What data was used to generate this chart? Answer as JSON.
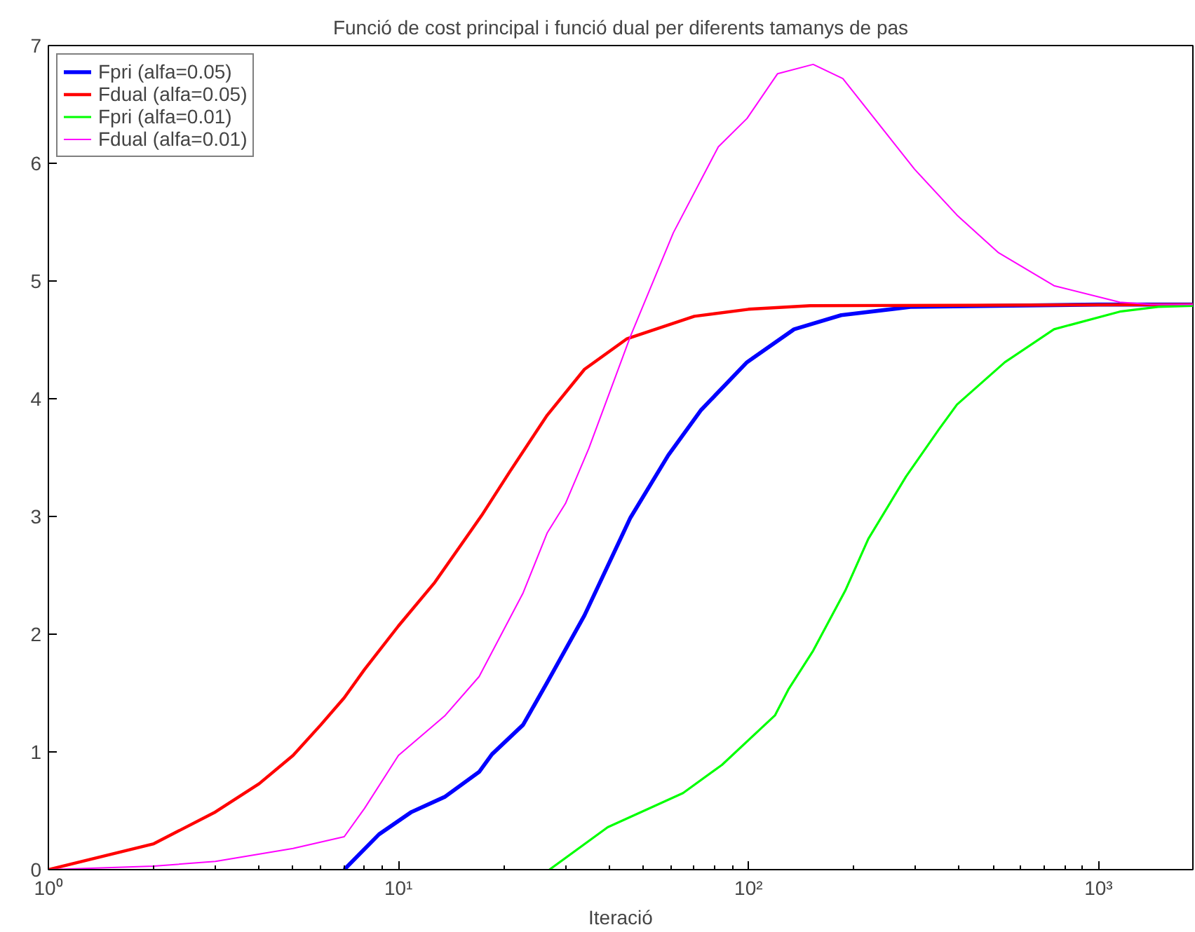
{
  "chart_data": {
    "type": "line",
    "title": "Funció de cost principal i funció dual per diferents tamanys de pas",
    "xlabel": "Iteració",
    "log": "x",
    "xlim": [
      1,
      1860
    ],
    "ylim": [
      0,
      7
    ],
    "xticks": [
      {
        "value": 1,
        "label": "10⁰"
      },
      {
        "value": 10,
        "label": "10¹"
      },
      {
        "value": 100,
        "label": "10²"
      },
      {
        "value": 1000,
        "label": "10³"
      }
    ],
    "yticks": [
      0,
      1,
      2,
      3,
      4,
      5,
      6,
      7
    ],
    "grid": false,
    "legend": "top left",
    "marker": "none",
    "line_style": "solid",
    "series": [
      {
        "name": "Fpri (alfa=0.05)",
        "color": "#0000ff",
        "x": [
          7,
          8.8,
          10.9,
          13.6,
          17,
          18.5,
          22.7,
          26.6,
          34,
          46,
          59,
          73,
          99,
          135,
          184,
          290,
          1000,
          1860
        ],
        "values": [
          0,
          0.3,
          0.49,
          0.62,
          0.83,
          0.98,
          1.23,
          1.59,
          2.16,
          2.99,
          3.52,
          3.9,
          4.31,
          4.59,
          4.71,
          4.78,
          4.8,
          4.8
        ]
      },
      {
        "name": "Fdual (alfa=0.05)",
        "color": "#ff0000",
        "x": [
          1,
          2,
          3,
          4,
          5,
          6,
          7,
          8,
          10,
          12.7,
          17.3,
          20.8,
          26.6,
          34,
          45,
          70,
          100,
          150,
          1860
        ],
        "values": [
          0,
          0.22,
          0.49,
          0.73,
          0.97,
          1.23,
          1.46,
          1.7,
          2.07,
          2.44,
          3.01,
          3.38,
          3.86,
          4.25,
          4.51,
          4.7,
          4.76,
          4.79,
          4.8
        ]
      },
      {
        "name": "Fpri (alfa=0.01)",
        "color": "#00ff00",
        "x": [
          27,
          39.6,
          65,
          84,
          119,
          130,
          153,
          189,
          220,
          282,
          350,
          394,
          540,
          746,
          1150,
          1480,
          1860
        ],
        "values": [
          0,
          0.36,
          0.65,
          0.89,
          1.31,
          1.53,
          1.86,
          2.37,
          2.81,
          3.34,
          3.74,
          3.95,
          4.31,
          4.59,
          4.74,
          4.78,
          4.79
        ]
      },
      {
        "name": "Fdual (alfa=0.01)",
        "color": "#ff00ff",
        "x": [
          1,
          2,
          3,
          5,
          7,
          8,
          10,
          13.6,
          17,
          22.7,
          26.6,
          30,
          35,
          46,
          61,
          82,
          99,
          121,
          153,
          186,
          298,
          394,
          518,
          746,
          1150,
          1420,
          1860
        ],
        "values": [
          0,
          0.03,
          0.07,
          0.18,
          0.28,
          0.52,
          0.97,
          1.31,
          1.64,
          2.35,
          2.86,
          3.11,
          3.58,
          4.53,
          5.41,
          6.14,
          6.38,
          6.76,
          6.84,
          6.72,
          5.95,
          5.56,
          5.24,
          4.96,
          4.82,
          4.8,
          4.8
        ]
      }
    ]
  }
}
